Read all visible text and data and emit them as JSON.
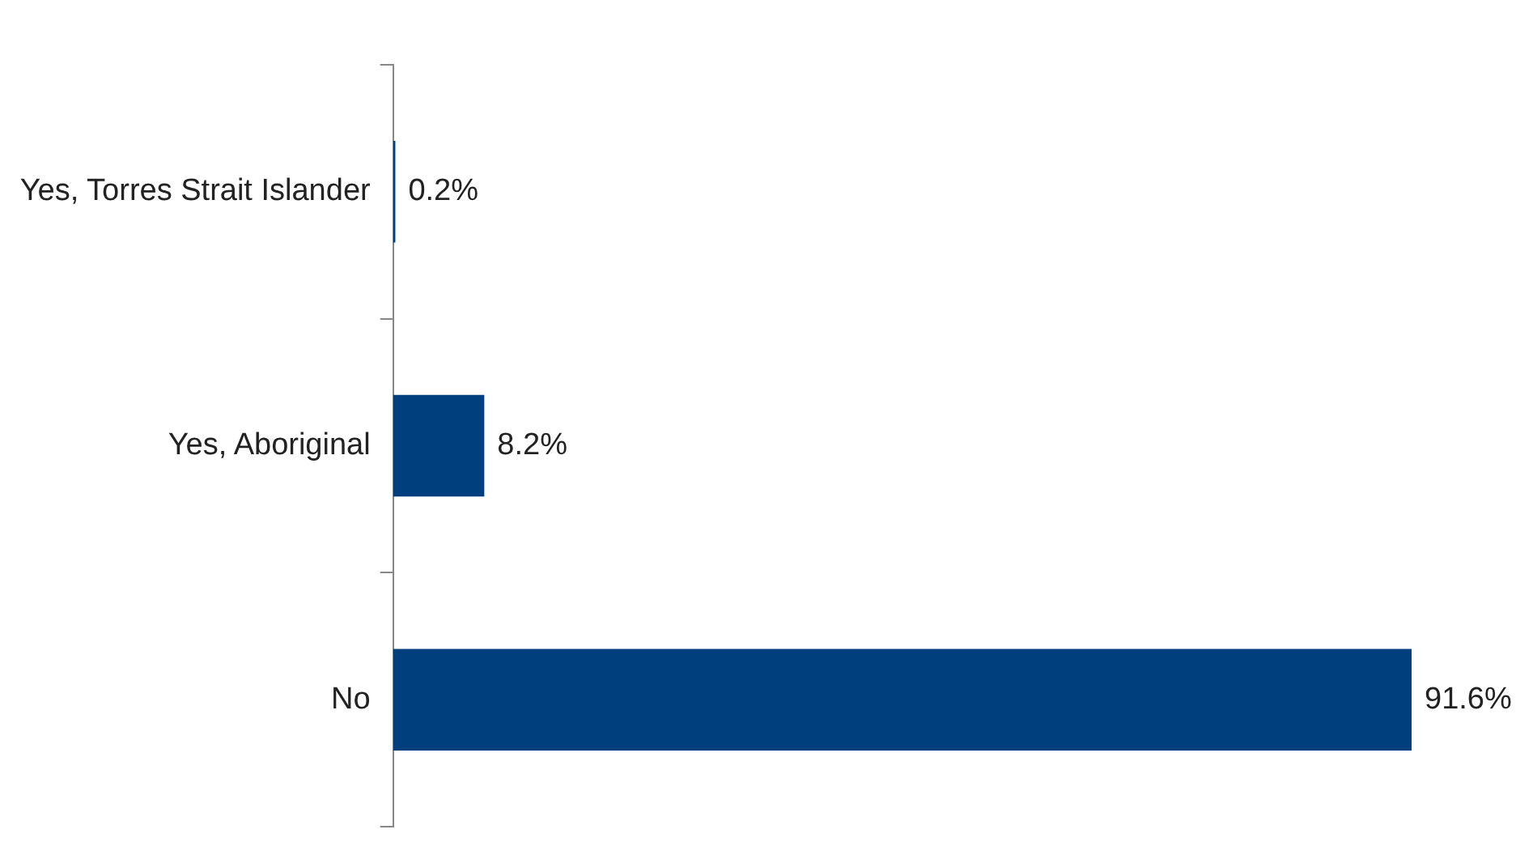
{
  "chart_data": {
    "type": "bar",
    "orientation": "horizontal",
    "categories": [
      "Yes, Torres Strait Islander",
      "Yes, Aboriginal",
      "No"
    ],
    "values": [
      0.2,
      8.2,
      91.6
    ],
    "color": "#003f7d",
    "value_labels": [
      "0.2%",
      "8.2%",
      "91.6%"
    ],
    "xlim": [
      0,
      91.6
    ],
    "grid": false,
    "legend": false
  }
}
